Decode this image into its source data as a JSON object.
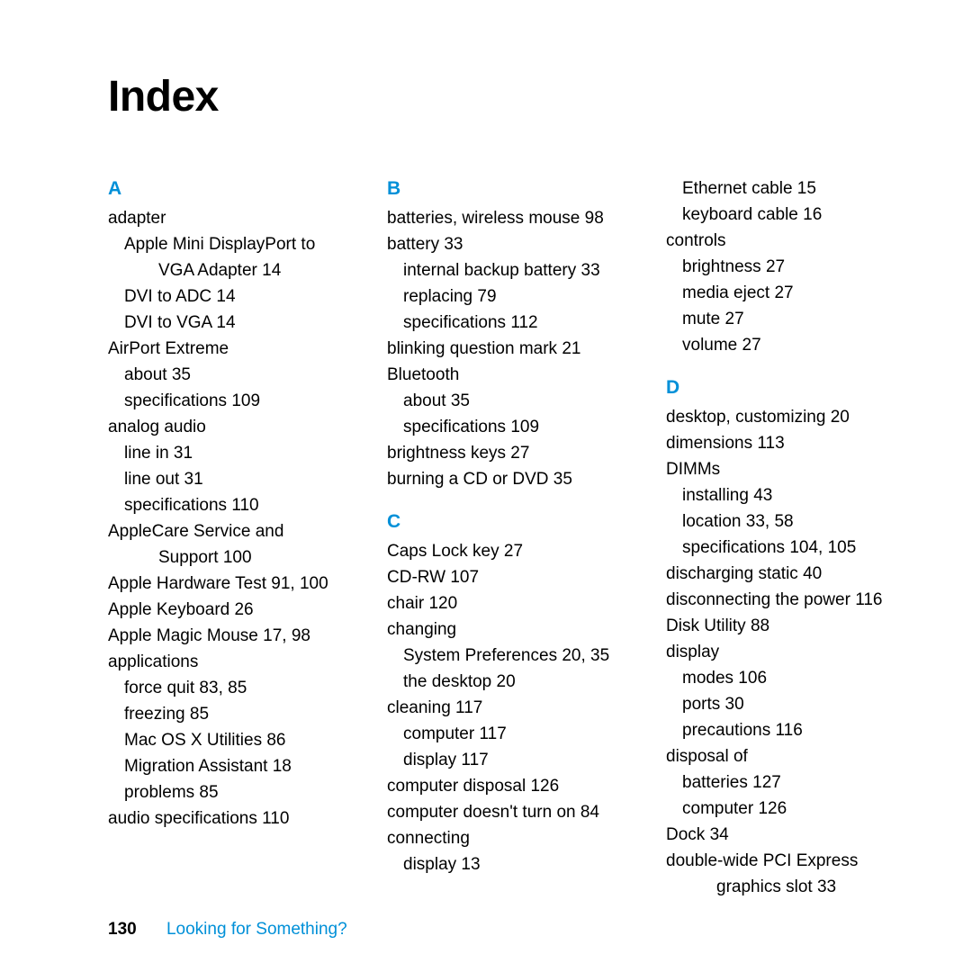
{
  "title": "Index",
  "footer": {
    "page": "130",
    "section": "Looking for Something?"
  },
  "colors": {
    "accent": "#0090d8",
    "text": "#000000",
    "bg": "#ffffff"
  },
  "columns": [
    {
      "groups": [
        {
          "letter": "A",
          "lines": [
            {
              "t": "adapter",
              "cls": ""
            },
            {
              "t": "Apple Mini DisplayPort to",
              "cls": "sub"
            },
            {
              "t": "VGA Adapter  14",
              "cls": "hang"
            },
            {
              "t": "DVI to ADC  14",
              "cls": "sub"
            },
            {
              "t": "DVI to VGA  14",
              "cls": "sub"
            },
            {
              "t": "AirPort Extreme",
              "cls": ""
            },
            {
              "t": "about  35",
              "cls": "sub"
            },
            {
              "t": "specifications  109",
              "cls": "sub"
            },
            {
              "t": "analog audio",
              "cls": ""
            },
            {
              "t": "line in  31",
              "cls": "sub"
            },
            {
              "t": "line out  31",
              "cls": "sub"
            },
            {
              "t": "specifications  110",
              "cls": "sub"
            },
            {
              "t": "AppleCare Service and",
              "cls": ""
            },
            {
              "t": "Support  100",
              "cls": "hang"
            },
            {
              "t": "Apple Hardware Test  91, 100",
              "cls": ""
            },
            {
              "t": "Apple Keyboard  26",
              "cls": ""
            },
            {
              "t": "Apple Magic Mouse  17, 98",
              "cls": ""
            },
            {
              "t": "applications",
              "cls": ""
            },
            {
              "t": "force quit  83, 85",
              "cls": "sub"
            },
            {
              "t": "freezing  85",
              "cls": "sub"
            },
            {
              "t": "Mac OS X Utilities  86",
              "cls": "sub"
            },
            {
              "t": "Migration Assistant  18",
              "cls": "sub"
            },
            {
              "t": "problems  85",
              "cls": "sub"
            },
            {
              "t": "audio specifications  110",
              "cls": ""
            }
          ]
        }
      ]
    },
    {
      "groups": [
        {
          "letter": "B",
          "lines": [
            {
              "t": "batteries, wireless mouse  98",
              "cls": ""
            },
            {
              "t": "battery  33",
              "cls": ""
            },
            {
              "t": "internal backup battery  33",
              "cls": "sub"
            },
            {
              "t": "replacing  79",
              "cls": "sub"
            },
            {
              "t": "specifications  112",
              "cls": "sub"
            },
            {
              "t": "blinking question mark  21",
              "cls": ""
            },
            {
              "t": "Bluetooth",
              "cls": ""
            },
            {
              "t": "about  35",
              "cls": "sub"
            },
            {
              "t": "specifications  109",
              "cls": "sub"
            },
            {
              "t": "brightness keys  27",
              "cls": ""
            },
            {
              "t": "burning a CD or DVD  35",
              "cls": ""
            }
          ]
        },
        {
          "letter": "C",
          "lines": [
            {
              "t": "Caps Lock key  27",
              "cls": ""
            },
            {
              "t": "CD-RW  107",
              "cls": ""
            },
            {
              "t": "chair  120",
              "cls": ""
            },
            {
              "t": "changing",
              "cls": ""
            },
            {
              "t": "System Preferences  20, 35",
              "cls": "sub"
            },
            {
              "t": "the desktop  20",
              "cls": "sub"
            },
            {
              "t": "cleaning  117",
              "cls": ""
            },
            {
              "t": "computer  117",
              "cls": "sub"
            },
            {
              "t": "display  117",
              "cls": "sub"
            },
            {
              "t": "computer disposal  126",
              "cls": ""
            },
            {
              "t": "computer doesn't turn on  84",
              "cls": ""
            },
            {
              "t": "connecting",
              "cls": ""
            },
            {
              "t": "display  13",
              "cls": "sub"
            }
          ]
        }
      ]
    },
    {
      "groups": [
        {
          "letter": "",
          "lines": [
            {
              "t": "Ethernet cable  15",
              "cls": "sub"
            },
            {
              "t": "keyboard cable  16",
              "cls": "sub"
            },
            {
              "t": "controls",
              "cls": ""
            },
            {
              "t": "brightness  27",
              "cls": "sub"
            },
            {
              "t": "media eject  27",
              "cls": "sub"
            },
            {
              "t": "mute  27",
              "cls": "sub"
            },
            {
              "t": "volume  27",
              "cls": "sub"
            }
          ]
        },
        {
          "letter": "D",
          "lines": [
            {
              "t": "desktop, customizing  20",
              "cls": ""
            },
            {
              "t": "dimensions  113",
              "cls": ""
            },
            {
              "t": "DIMMs",
              "cls": ""
            },
            {
              "t": "installing  43",
              "cls": "sub"
            },
            {
              "t": "location  33, 58",
              "cls": "sub"
            },
            {
              "t": "specifications  104, 105",
              "cls": "sub"
            },
            {
              "t": "discharging static  40",
              "cls": ""
            },
            {
              "t": "disconnecting the power  116",
              "cls": ""
            },
            {
              "t": "Disk Utility  88",
              "cls": ""
            },
            {
              "t": "display",
              "cls": ""
            },
            {
              "t": "modes  106",
              "cls": "sub"
            },
            {
              "t": "ports  30",
              "cls": "sub"
            },
            {
              "t": "precautions  116",
              "cls": "sub"
            },
            {
              "t": "disposal of",
              "cls": ""
            },
            {
              "t": "batteries  127",
              "cls": "sub"
            },
            {
              "t": "computer  126",
              "cls": "sub"
            },
            {
              "t": "Dock  34",
              "cls": ""
            },
            {
              "t": "double-wide PCI Express",
              "cls": ""
            },
            {
              "t": "graphics slot  33",
              "cls": "hang"
            }
          ]
        }
      ]
    }
  ]
}
